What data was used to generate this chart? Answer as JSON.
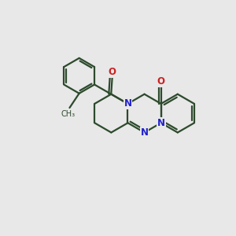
{
  "background_color": "#e8e8e8",
  "bond_color": "#2d4a2d",
  "N_color": "#2020cc",
  "O_color": "#cc2020",
  "line_width": 1.6,
  "fig_size": [
    3.0,
    3.0
  ],
  "dpi": 100,
  "xlim": [
    0,
    10
  ],
  "ylim": [
    0,
    10
  ]
}
